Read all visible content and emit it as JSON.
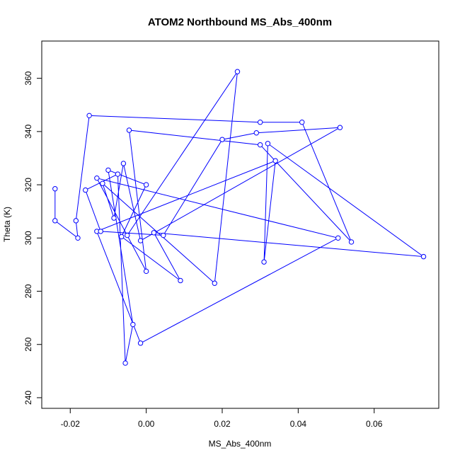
{
  "chart_data": {
    "type": "line",
    "title": "ATOM2 Northbound MS_Abs_400nm",
    "xlabel": "MS_Abs_400nm",
    "ylabel": "Theta (K)",
    "xlim": [
      -0.0275,
      0.077
    ],
    "ylim": [
      236,
      374
    ],
    "x_ticks": [
      -0.02,
      0.0,
      0.02,
      0.04,
      0.06
    ],
    "x_tick_labels": [
      "-0.02",
      "0.00",
      "0.02",
      "0.04",
      "0.06"
    ],
    "y_ticks": [
      240,
      260,
      280,
      300,
      320,
      340,
      360
    ],
    "y_tick_labels": [
      "240",
      "260",
      "280",
      "300",
      "320",
      "340",
      "360"
    ],
    "grid": false,
    "legend": "none",
    "series": [
      {
        "color": "#0000ff",
        "marker": "open-circle",
        "x": [
          -0.024,
          -0.024,
          -0.018,
          -0.0185,
          -0.015,
          0.03,
          0.041,
          0.054,
          0.03,
          -0.0045,
          0.0,
          -0.013,
          0.0505,
          -0.0015,
          -0.013,
          0.034,
          0.031,
          0.032,
          0.073,
          0.002,
          0.009,
          -0.0065,
          0.0,
          -0.01,
          -0.0035,
          -0.0055,
          -0.0075,
          -0.016,
          -0.012,
          0.0045,
          0.02,
          0.029,
          0.051,
          -0.0015,
          -0.006,
          -0.0085,
          -0.0115,
          0.018,
          0.024,
          -0.005
        ],
        "y": [
          318.5,
          306.5,
          300,
          306.5,
          346,
          343.5,
          343.5,
          298.5,
          335,
          340.5,
          287.5,
          322.5,
          300,
          260.5,
          302.5,
          329,
          291,
          335.5,
          293,
          302,
          284,
          300.5,
          320,
          325.5,
          267.5,
          253,
          324,
          318,
          302.5,
          301,
          337,
          339.5,
          341.5,
          299,
          328,
          307.5,
          320.5,
          283,
          362.5,
          301
        ]
      }
    ]
  }
}
